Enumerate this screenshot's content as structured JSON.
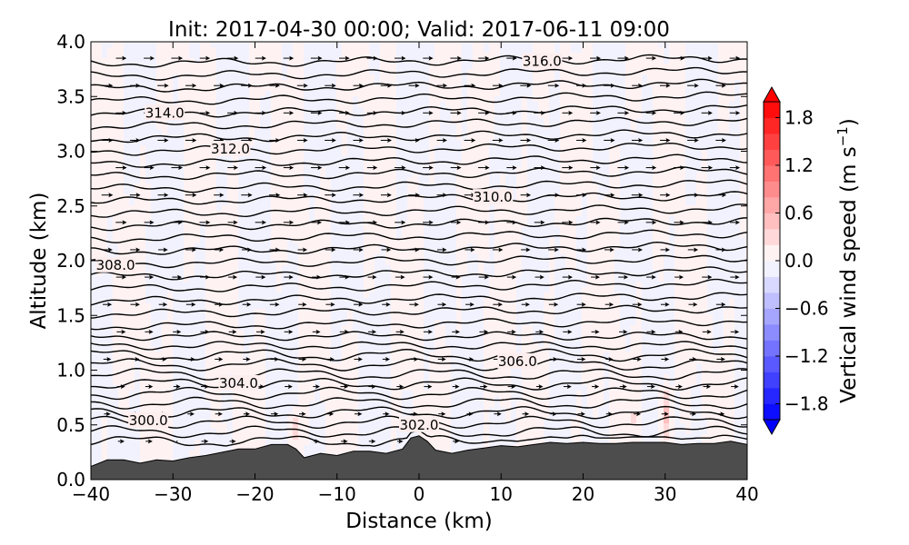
{
  "chart_data": {
    "type": "contour",
    "title": "Init: 2017-04-30 00:00; Valid: 2017-06-11 09:00",
    "xlabel": "Distance (km)",
    "ylabel": "Altitude (km)",
    "xlim": [
      -40,
      40
    ],
    "ylim": [
      0,
      4
    ],
    "x_ticks": [
      -40,
      -30,
      -20,
      -10,
      0,
      10,
      20,
      30,
      40
    ],
    "x_tick_labels": [
      "−40",
      "−30",
      "−20",
      "−10",
      "0",
      "10",
      "20",
      "30",
      "40"
    ],
    "y_ticks": [
      0,
      0.5,
      1,
      1.5,
      2,
      2.5,
      3,
      3.5,
      4
    ],
    "y_tick_labels": [
      "0.0",
      "0.5",
      "1.0",
      "1.5",
      "2.0",
      "2.5",
      "3.0",
      "3.5",
      "4.0"
    ],
    "colorbar": {
      "label_main": "Vertical wind speed (m s",
      "label_sup": "−1",
      "label_end": ")",
      "range": [
        -2.0,
        2.0
      ],
      "levels_step": 0.2,
      "ticks": [
        1.8,
        1.2,
        0.6,
        0.0,
        -0.6,
        -1.2,
        -1.8
      ],
      "tick_labels": [
        "1.8",
        "1.2",
        "0.6",
        "0.0",
        "−0.6",
        "−1.2",
        "−1.8"
      ],
      "cmap": "bwr",
      "extend": "both"
    },
    "contour_labels": [
      {
        "text": "316.0",
        "x": 15,
        "y": 3.82
      },
      {
        "text": "314.0",
        "x": -31,
        "y": 3.35
      },
      {
        "text": "312.0",
        "x": -23,
        "y": 3.02
      },
      {
        "text": "310.0",
        "x": 9,
        "y": 2.58
      },
      {
        "text": "308.0",
        "x": -37,
        "y": 1.96
      },
      {
        "text": "306.0",
        "x": 12,
        "y": 1.08
      },
      {
        "text": "304.0",
        "x": -22,
        "y": 0.88
      },
      {
        "text": "302.0",
        "x": 0,
        "y": 0.5
      },
      {
        "text": "300.0",
        "x": -33,
        "y": 0.54
      }
    ],
    "theta_levels": [
      300,
      300.5,
      301,
      301.5,
      302,
      302.5,
      303,
      303.5,
      304,
      304.5,
      305,
      305.5,
      306,
      306.5,
      307,
      307.5,
      308,
      308.5,
      309,
      309.5,
      310,
      310.5,
      311,
      311.5,
      312,
      312.5,
      313,
      313.5,
      314,
      314.5,
      315,
      315.5,
      316,
      316.5
    ],
    "terrain": {
      "x": [
        -40,
        -38,
        -36,
        -34,
        -32,
        -30,
        -28,
        -26,
        -24,
        -22,
        -20,
        -18,
        -16,
        -15,
        -14,
        -12,
        -10,
        -8,
        -6,
        -4,
        -2,
        -1,
        0,
        1,
        2,
        4,
        6,
        8,
        10,
        12,
        14,
        16,
        18,
        20,
        22,
        24,
        26,
        28,
        30,
        32,
        34,
        36,
        38,
        40
      ],
      "y": [
        0.12,
        0.18,
        0.18,
        0.15,
        0.18,
        0.17,
        0.2,
        0.22,
        0.25,
        0.28,
        0.28,
        0.32,
        0.32,
        0.28,
        0.2,
        0.24,
        0.22,
        0.26,
        0.26,
        0.24,
        0.28,
        0.38,
        0.4,
        0.35,
        0.27,
        0.24,
        0.27,
        0.29,
        0.31,
        0.3,
        0.32,
        0.34,
        0.33,
        0.34,
        0.33,
        0.33,
        0.34,
        0.34,
        0.34,
        0.32,
        0.33,
        0.33,
        0.35,
        0.32
      ],
      "color": "#4d4d4d"
    },
    "vertical_wind_anomalies": [
      {
        "x": 30,
        "y": 0.6,
        "rx": 0.6,
        "ry": 0.25,
        "w": 0.5
      },
      {
        "x": -15,
        "y": 0.45,
        "rx": 0.8,
        "ry": 0.15,
        "w": 0.35
      },
      {
        "x": -24,
        "y": 0.47,
        "rx": 0.5,
        "ry": 0.06,
        "w": 0.25
      },
      {
        "x": 26,
        "y": 0.55,
        "rx": 0.3,
        "ry": 0.08,
        "w": 0.3
      },
      {
        "x": 33,
        "y": 0.6,
        "rx": 0.3,
        "ry": 0.12,
        "w": 0.25
      },
      {
        "x": 35,
        "y": 0.48,
        "rx": 0.25,
        "ry": 0.06,
        "w": -0.35
      }
    ],
    "wind_vectors": {
      "color": "#000000"
    }
  }
}
